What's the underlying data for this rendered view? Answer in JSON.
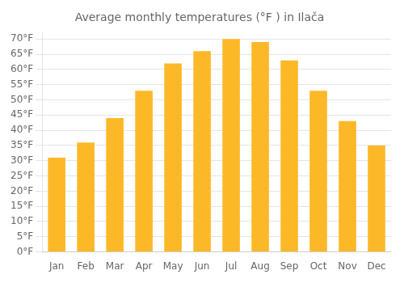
{
  "chart_data": {
    "type": "bar",
    "title": "Average monthly temperatures (°F ) in Ilača",
    "categories": [
      "Jan",
      "Feb",
      "Mar",
      "Apr",
      "May",
      "Jun",
      "Jul",
      "Aug",
      "Sep",
      "Oct",
      "Nov",
      "Dec"
    ],
    "values": [
      31,
      36,
      44,
      53,
      62,
      66,
      70,
      69,
      63,
      53,
      43,
      35
    ],
    "color": "#FDB827",
    "ylim": [
      0,
      72
    ],
    "yticks": [
      {
        "value": 0,
        "label": "0°F"
      },
      {
        "value": 5,
        "label": "5°F"
      },
      {
        "value": 10,
        "label": "10°F"
      },
      {
        "value": 15,
        "label": "15°F"
      },
      {
        "value": 20,
        "label": "20°F"
      },
      {
        "value": 25,
        "label": "25°F"
      },
      {
        "value": 30,
        "label": "30°F"
      },
      {
        "value": 35,
        "label": "35°F"
      },
      {
        "value": 40,
        "label": "40°F"
      },
      {
        "value": 45,
        "label": "45°F"
      },
      {
        "value": 50,
        "label": "50°F"
      },
      {
        "value": 55,
        "label": "55°F"
      },
      {
        "value": 60,
        "label": "60°F"
      },
      {
        "value": 65,
        "label": "65°F"
      },
      {
        "value": 70,
        "label": "70°F"
      }
    ],
    "grid": true
  }
}
